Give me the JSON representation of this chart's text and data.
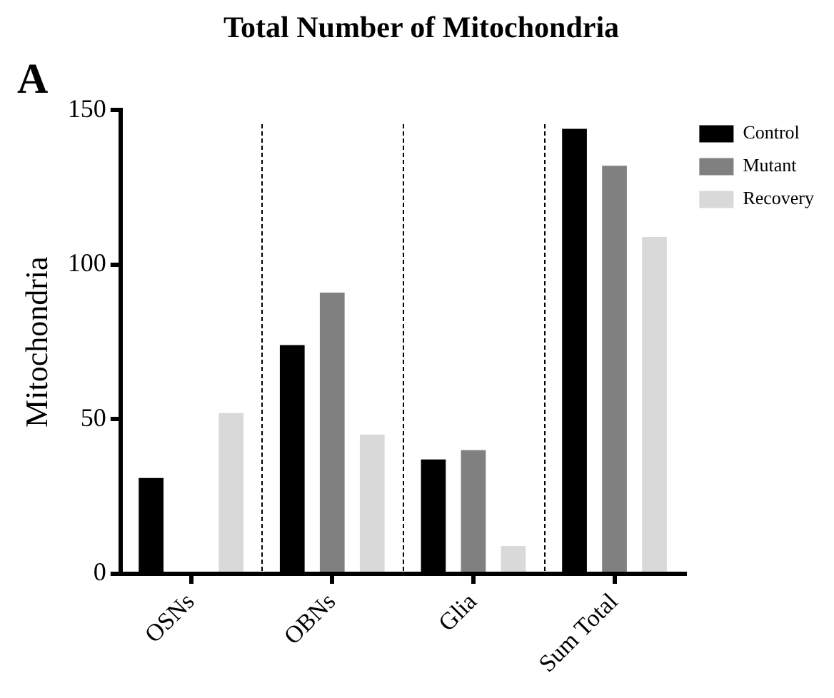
{
  "chart_data": {
    "type": "bar",
    "title": "Total Number of Mitochondria",
    "ylabel": "Mitochondria",
    "annotations": [
      "A"
    ],
    "categories": [
      "OSNs",
      "OBNs",
      "Glia",
      "Sum Total"
    ],
    "series": [
      {
        "name": "Control",
        "color": "#000000",
        "values": [
          31,
          74,
          37,
          144
        ]
      },
      {
        "name": "Mutant",
        "color": "#808080",
        "values": [
          0,
          91,
          40,
          132
        ]
      },
      {
        "name": "Recovery",
        "color": "#d9d9d9",
        "values": [
          52,
          45,
          9,
          109
        ]
      }
    ],
    "ylim": [
      0,
      150
    ],
    "yticks": [
      0,
      50,
      100,
      150
    ],
    "grid": false,
    "legend": "top right"
  }
}
